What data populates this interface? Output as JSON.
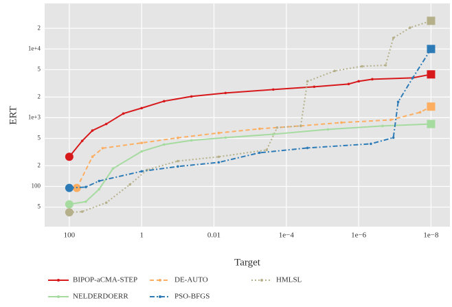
{
  "chart_data": {
    "type": "line",
    "x_label": "Target",
    "y_label": "ERT",
    "xscale": "log",
    "yscale": "log",
    "grid": true,
    "xlim": [
      480,
      3e-09
    ],
    "ylim": [
      26,
      46000
    ],
    "xticks": [
      100,
      1,
      0.01,
      {
        "value": 0.0001,
        "label": "1e−4"
      },
      {
        "value": 1e-06,
        "label": "1e−6"
      },
      {
        "value": 1e-08,
        "label": "1e−8"
      }
    ],
    "yticks": [
      {
        "value": 50,
        "label": "5"
      },
      100,
      {
        "value": 200,
        "label": "2"
      },
      {
        "value": 500,
        "label": "5"
      },
      {
        "value": 1000,
        "label": "1e+3"
      },
      {
        "value": 2000,
        "label": "2"
      },
      {
        "value": 5000,
        "label": "5"
      },
      {
        "value": 10000,
        "label": "1e+4"
      },
      {
        "value": 20000,
        "label": "2"
      }
    ],
    "legend_position": "bottom",
    "series": [
      {
        "name": "BIPOP-aCMA-STEP",
        "color": "#d7191c",
        "linestyle": "solid",
        "x": [
          100,
          44,
          23,
          9.5,
          3.2,
          1,
          0.24,
          0.042,
          0.0048,
          0.00023,
          1.7e-05,
          1.9e-06,
          1e-06,
          4.2e-07,
          3.2e-08,
          1e-08
        ],
        "values": [
          270,
          460,
          650,
          810,
          1150,
          1380,
          1740,
          2040,
          2290,
          2570,
          2820,
          3090,
          3390,
          3630,
          3800,
          4270
        ]
      },
      {
        "name": "DE-AUTO",
        "color": "#fdae61",
        "linestyle": "dashed",
        "x": [
          62,
          23,
          12,
          1,
          0.1,
          0.0074,
          0.00055,
          4e-05,
          3e-06,
          1.3e-07,
          2e-08,
          1e-08
        ],
        "values": [
          95,
          270,
          360,
          430,
          510,
          600,
          690,
          760,
          850,
          930,
          1200,
          1450
        ]
      },
      {
        "name": "HMLSL",
        "color": "#b5b08a",
        "linestyle": "dotted",
        "x": [
          100,
          44,
          9.5,
          2.1,
          0.71,
          0.1,
          0.0074,
          0.00035,
          0.00018,
          4e-05,
          2.6e-05,
          4.6e-06,
          8.1e-07,
          1.8e-07,
          1.1e-07,
          3.8e-08,
          1e-08
        ],
        "values": [
          42,
          43,
          58,
          107,
          174,
          234,
          270,
          340,
          720,
          760,
          3390,
          4800,
          5600,
          5800,
          14500,
          20400,
          25700
        ]
      },
      {
        "name": "NELDERDOERR",
        "color": "#a6dba0",
        "linestyle": "solid",
        "x": [
          100,
          35,
          15,
          6.2,
          1,
          0.24,
          0.042,
          0.0048,
          0.00023,
          7.1e-06,
          2.2e-07,
          1e-08
        ],
        "values": [
          55,
          60,
          91,
          182,
          324,
          407,
          468,
          513,
          575,
          676,
          760,
          810
        ]
      },
      {
        "name": "PSO-BFGS",
        "color": "#2c7bb6",
        "linestyle": "dashdot",
        "x": [
          100,
          35,
          15,
          1,
          0.1,
          0.0074,
          0.00055,
          2.6e-05,
          4.6e-07,
          1.1e-07,
          8.1e-08,
          3.2e-08,
          1e-08
        ],
        "values": [
          95,
          98,
          120,
          166,
          195,
          224,
          309,
          363,
          417,
          513,
          1700,
          3800,
          10000
        ]
      }
    ]
  }
}
